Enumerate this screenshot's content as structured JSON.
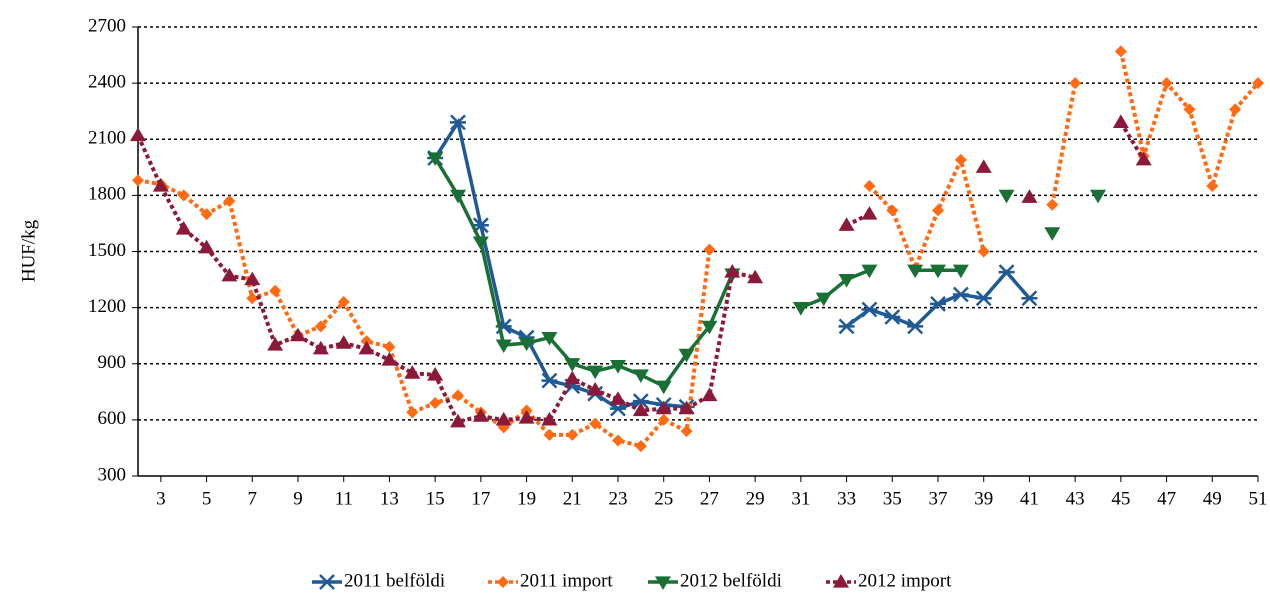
{
  "chart_data": {
    "type": "line",
    "ylabel": "HUF/kg",
    "x": [
      2,
      3,
      4,
      5,
      6,
      7,
      8,
      9,
      10,
      11,
      12,
      13,
      14,
      15,
      16,
      17,
      18,
      19,
      20,
      21,
      22,
      23,
      24,
      25,
      26,
      27,
      28,
      29,
      30,
      31,
      32,
      33,
      34,
      35,
      36,
      37,
      38,
      39,
      40,
      41,
      42,
      43,
      44,
      45,
      46,
      47,
      48,
      49,
      50,
      51
    ],
    "xlim": [
      2,
      51
    ],
    "xticks": [
      3,
      5,
      7,
      9,
      11,
      13,
      15,
      17,
      19,
      21,
      23,
      25,
      27,
      29,
      31,
      33,
      35,
      37,
      39,
      41,
      43,
      45,
      47,
      49,
      51
    ],
    "ylim": [
      300,
      2700
    ],
    "yticks": [
      300,
      600,
      900,
      1200,
      1500,
      1800,
      2100,
      2400,
      2700
    ],
    "grid": true,
    "legend": "bottom",
    "series": [
      {
        "name": "2011 belföldi",
        "color": "#1f5a96",
        "marker": "star",
        "dashed": false,
        "values": [
          null,
          null,
          null,
          null,
          null,
          null,
          null,
          null,
          null,
          null,
          null,
          null,
          null,
          2000,
          2190,
          1640,
          1100,
          1040,
          810,
          780,
          740,
          660,
          700,
          680,
          670,
          null,
          null,
          null,
          null,
          null,
          null,
          1100,
          1190,
          1150,
          1100,
          1220,
          1270,
          1250,
          1390,
          1250,
          null,
          null,
          null,
          null,
          null,
          null,
          null,
          null,
          null,
          null
        ]
      },
      {
        "name": "2011 import",
        "color": "#ff6a13",
        "marker": "diamond",
        "dashed": true,
        "values": [
          1880,
          1860,
          1800,
          1700,
          1770,
          1250,
          1290,
          1050,
          1100,
          1230,
          1020,
          990,
          640,
          690,
          730,
          640,
          560,
          650,
          520,
          520,
          580,
          490,
          460,
          600,
          540,
          1510,
          null,
          null,
          null,
          null,
          null,
          null,
          1850,
          1720,
          1410,
          1720,
          1990,
          1500,
          null,
          null,
          1750,
          2400,
          null,
          2570,
          2010,
          2400,
          2260,
          1850,
          2260,
          2400
        ]
      },
      {
        "name": "2012 belföldi",
        "color": "#1a7034",
        "marker": "down",
        "dashed": false,
        "values": [
          null,
          null,
          null,
          null,
          null,
          null,
          null,
          null,
          null,
          null,
          null,
          null,
          null,
          2000,
          1800,
          1550,
          1000,
          1010,
          1040,
          900,
          860,
          890,
          840,
          780,
          950,
          1100,
          1380,
          null,
          null,
          1200,
          1250,
          1350,
          1400,
          null,
          1400,
          1400,
          1400,
          null,
          1800,
          null,
          1600,
          null,
          1800,
          null,
          null,
          null,
          null,
          null,
          null,
          null
        ]
      },
      {
        "name": "2012 import",
        "color": "#8b1a3a",
        "marker": "up",
        "dashed": true,
        "values": [
          2120,
          1850,
          1620,
          1520,
          1370,
          1350,
          1000,
          1050,
          980,
          1010,
          980,
          920,
          850,
          840,
          590,
          620,
          600,
          610,
          600,
          820,
          760,
          710,
          650,
          660,
          660,
          730,
          1390,
          1360,
          null,
          null,
          null,
          1640,
          1700,
          null,
          null,
          null,
          null,
          1950,
          null,
          1790,
          null,
          null,
          null,
          2190,
          1990,
          null,
          null,
          null,
          null,
          null
        ]
      }
    ]
  }
}
